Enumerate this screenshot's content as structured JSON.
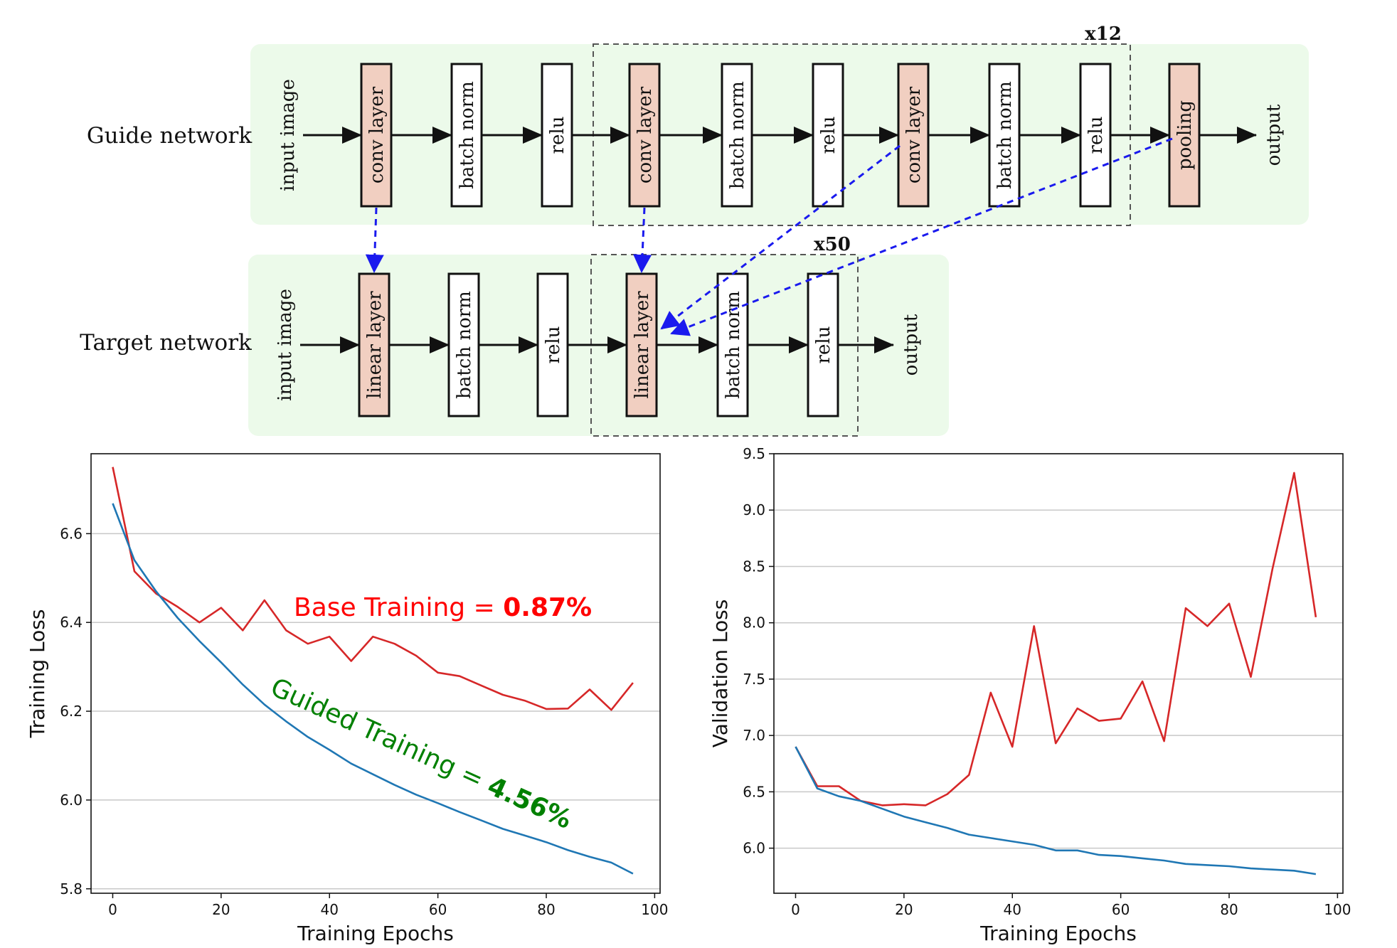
{
  "diagram": {
    "guide_label": "Guide network",
    "target_label": "Target network",
    "repeat_guide": "x12",
    "repeat_target": "x50",
    "guide_nodes": [
      "input image",
      "conv layer",
      "batch norm",
      "relu",
      "conv layer",
      "batch norm",
      "relu",
      "conv layer",
      "batch norm",
      "relu",
      "pooling",
      "output"
    ],
    "target_nodes": [
      "input image",
      "linear layer",
      "batch norm",
      "relu",
      "linear layer",
      "batch norm",
      "relu",
      "output"
    ],
    "colors": {
      "panel": "#ecfaea",
      "highlight": "#f1cfc1",
      "plain": "#ffffff",
      "arrow_guide": "#1a1aee"
    }
  },
  "chart_data": [
    {
      "type": "line",
      "xlabel": "Training Epochs",
      "ylabel": "Training Loss",
      "xlim": [
        -4,
        101
      ],
      "ylim": [
        5.79,
        6.78
      ],
      "xticks": [
        0,
        20,
        40,
        60,
        80,
        100
      ],
      "yticks": [
        5.8,
        6.0,
        6.2,
        6.4,
        6.6
      ],
      "grid": "y",
      "series": [
        {
          "color": "#d62728",
          "x": [
            0,
            4,
            8,
            12,
            16,
            20,
            24,
            28,
            32,
            36,
            40,
            44,
            48,
            52,
            56,
            60,
            64,
            68,
            72,
            76,
            80,
            84,
            88,
            92,
            96
          ],
          "y": [
            6.75,
            6.515,
            6.465,
            6.435,
            6.4,
            6.433,
            6.382,
            6.45,
            6.382,
            6.352,
            6.368,
            6.313,
            6.368,
            6.352,
            6.325,
            6.287,
            6.279,
            6.258,
            6.237,
            6.224,
            6.205,
            6.206,
            6.249,
            6.203,
            6.264
          ]
        },
        {
          "color": "#1f77b4",
          "x": [
            0,
            4,
            8,
            12,
            16,
            20,
            24,
            28,
            32,
            36,
            40,
            44,
            48,
            52,
            56,
            60,
            64,
            68,
            72,
            76,
            80,
            84,
            88,
            92,
            96
          ],
          "y": [
            6.668,
            6.54,
            6.47,
            6.41,
            6.358,
            6.31,
            6.26,
            6.215,
            6.177,
            6.142,
            6.113,
            6.082,
            6.058,
            6.034,
            6.012,
            5.993,
            5.973,
            5.954,
            5.935,
            5.92,
            5.905,
            5.887,
            5.872,
            5.859,
            5.834
          ]
        }
      ],
      "annotations": [
        {
          "text": "Base Training = ",
          "bold": "0.87%",
          "color": "#ff0000"
        },
        {
          "text": "Guided Training = ",
          "bold": "4.56%",
          "color": "#008000"
        }
      ]
    },
    {
      "type": "line",
      "xlabel": "Training Epochs",
      "ylabel": "Validation Loss",
      "xlim": [
        -4,
        101
      ],
      "ylim": [
        5.6,
        9.5
      ],
      "xticks": [
        0,
        20,
        40,
        60,
        80,
        100
      ],
      "yticks": [
        6.0,
        6.5,
        7.0,
        7.5,
        8.0,
        8.5,
        9.0,
        9.5
      ],
      "grid": "y",
      "series": [
        {
          "color": "#d62728",
          "x": [
            0,
            4,
            8,
            12,
            16,
            20,
            24,
            28,
            32,
            36,
            40,
            44,
            48,
            52,
            56,
            60,
            64,
            68,
            72,
            76,
            80,
            84,
            88,
            92,
            96
          ],
          "y": [
            6.9,
            6.55,
            6.55,
            6.42,
            6.38,
            6.39,
            6.38,
            6.48,
            6.65,
            7.38,
            6.9,
            7.97,
            6.93,
            7.24,
            7.13,
            7.15,
            7.48,
            6.95,
            8.13,
            7.97,
            8.17,
            7.52,
            8.48,
            9.33,
            8.05
          ]
        },
        {
          "color": "#1f77b4",
          "x": [
            0,
            4,
            8,
            12,
            16,
            20,
            24,
            28,
            32,
            36,
            40,
            44,
            48,
            52,
            56,
            60,
            64,
            68,
            72,
            76,
            80,
            84,
            88,
            92,
            96
          ],
          "y": [
            6.9,
            6.53,
            6.46,
            6.42,
            6.35,
            6.28,
            6.23,
            6.18,
            6.12,
            6.09,
            6.06,
            6.03,
            5.98,
            5.98,
            5.94,
            5.93,
            5.91,
            5.89,
            5.86,
            5.85,
            5.84,
            5.82,
            5.81,
            5.8,
            5.77
          ]
        }
      ]
    }
  ]
}
